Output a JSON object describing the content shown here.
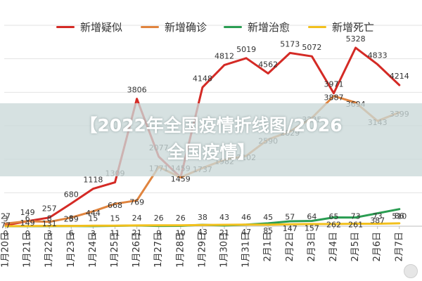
{
  "overlay": {
    "line1": "【2022年全国疫情折线图/2026",
    "line2": "全国疫情】"
  },
  "chart_data": {
    "type": "line",
    "categories": [
      "1月20日",
      "1月21日",
      "1月22日",
      "1月23日",
      "1月24日",
      "1月25日",
      "1月26日",
      "1月27日",
      "1月28日",
      "1月29日",
      "1月30日",
      "1月31日",
      "2月1日",
      "2月2日",
      "2月3日",
      "2月4日",
      "2月5日",
      "2月6日",
      "2月7日"
    ],
    "ylim": [
      0,
      6000
    ],
    "grid": true,
    "legend_position": "top",
    "series": [
      {
        "name": "新增疑似",
        "color": "#d42a25",
        "values": [
          27,
          149,
          257,
          680,
          1118,
          1309,
          3806,
          2077,
          1459,
          4148,
          4812,
          5019,
          4562,
          5173,
          5072,
          3971,
          5328,
          4833,
          4214
        ],
        "labels": [
          "27",
          "149",
          "257",
          "680",
          "1118",
          "1309",
          "3806",
          "2077",
          "1459",
          "4148",
          "4812",
          "5019",
          "4562",
          "5173",
          "5072",
          "3971",
          "5328",
          "4833",
          "4214"
        ]
      },
      {
        "name": "新增确诊",
        "color": "#e0843e",
        "values": [
          77,
          149,
          131,
          259,
          444,
          668,
          769,
          1771,
          1459,
          1737,
          1982,
          2102,
          2590,
          2829,
          3235,
          3887,
          3694,
          3143,
          3399
        ],
        "labels": [
          "77",
          "149",
          "131",
          "259",
          "444",
          "668",
          "769",
          "1771",
          "1459",
          "1737",
          "1982",
          "2102",
          "2590",
          "2829",
          "3235",
          "3887",
          "3694",
          "3143",
          "3399"
        ]
      },
      {
        "name": "新增治愈",
        "color": "#2a9d52",
        "values": [
          0,
          0,
          3,
          6,
          3,
          11,
          21,
          9,
          10,
          43,
          21,
          47,
          85,
          147,
          157,
          262,
          261,
          387,
          510
        ],
        "labels": [
          "0",
          "0",
          "3",
          "6",
          "3",
          "11",
          "21",
          "9",
          "10",
          "43",
          "21",
          "47",
          "85",
          "147",
          "157",
          "262",
          "261",
          "387",
          "510"
        ]
      },
      {
        "name": "新增死亡",
        "color": "#f2c01d",
        "values": [
          3,
          6,
          8,
          8,
          15,
          15,
          24,
          26,
          26,
          38,
          43,
          46,
          45,
          57,
          64,
          65,
          73,
          73,
          86
        ],
        "labels": [
          "3",
          "6",
          "8",
          "8",
          "15",
          "15",
          "24",
          "26",
          "26",
          "38",
          "43",
          "46",
          "45",
          "57",
          "64",
          "65",
          "73",
          "73",
          "86"
        ]
      }
    ]
  }
}
